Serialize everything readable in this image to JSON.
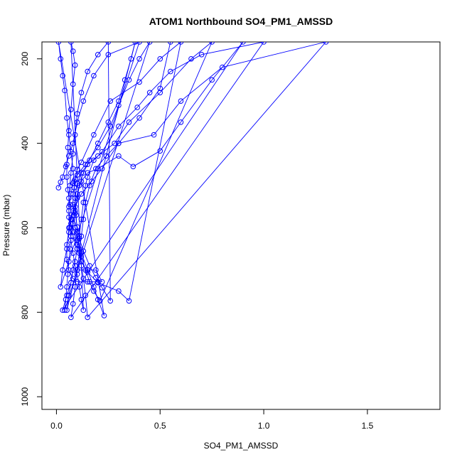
{
  "chart_data": {
    "type": "line",
    "title": "ATOM1 Northbound SO4_PM1_AMSSD",
    "xlabel": "SO4_PM1_AMSSD",
    "ylabel": "Pressure (mbar)",
    "xlim": [
      -0.07,
      1.85
    ],
    "ylim": [
      1030,
      160
    ],
    "y_reversed": true,
    "x_ticks": [
      0.0,
      0.5,
      1.0,
      1.5
    ],
    "x_tick_labels": [
      "0.0",
      "0.5",
      "1.0",
      "1.5"
    ],
    "y_ticks": [
      200,
      400,
      600,
      800,
      1000
    ],
    "y_tick_labels": [
      "200",
      "400",
      "600",
      "800",
      "1000"
    ],
    "grid": false,
    "legend": "none",
    "series_color": "#0000ff",
    "marker": "open-circle",
    "points": [
      [
        0.01,
        505
      ],
      [
        0.02,
        492
      ],
      [
        0.03,
        480
      ],
      [
        0.045,
        455
      ],
      [
        0.06,
        430
      ],
      [
        0.08,
        400
      ],
      [
        0.1,
        350
      ],
      [
        0.13,
        300
      ],
      [
        0.18,
        240
      ],
      [
        0.25,
        190
      ],
      [
        0.4,
        160
      ],
      [
        0.02,
        740
      ],
      [
        0.03,
        700
      ],
      [
        0.05,
        650
      ],
      [
        0.06,
        600
      ],
      [
        0.08,
        560
      ],
      [
        0.1,
        520
      ],
      [
        0.12,
        490
      ],
      [
        0.15,
        470
      ],
      [
        0.2,
        460
      ],
      [
        0.3,
        430
      ],
      [
        0.37,
        455
      ],
      [
        0.5,
        418
      ],
      [
        0.6,
        350
      ],
      [
        0.75,
        250
      ],
      [
        0.9,
        160
      ],
      [
        0.03,
        795
      ],
      [
        0.05,
        760
      ],
      [
        0.07,
        730
      ],
      [
        0.08,
        700
      ],
      [
        0.09,
        680
      ],
      [
        0.1,
        650
      ],
      [
        0.11,
        620
      ],
      [
        0.12,
        580
      ],
      [
        0.13,
        540
      ],
      [
        0.14,
        500
      ],
      [
        0.15,
        480
      ],
      [
        0.18,
        440
      ],
      [
        0.22,
        420
      ],
      [
        0.3,
        360
      ],
      [
        0.39,
        315
      ],
      [
        0.45,
        280
      ],
      [
        0.55,
        230
      ],
      [
        0.7,
        190
      ],
      [
        1.0,
        160
      ],
      [
        0.07,
        812
      ],
      [
        0.08,
        780
      ],
      [
        0.09,
        740
      ],
      [
        0.1,
        700
      ],
      [
        0.11,
        660
      ],
      [
        0.12,
        620
      ],
      [
        0.13,
        580
      ],
      [
        0.14,
        540
      ],
      [
        0.16,
        500
      ],
      [
        0.19,
        460
      ],
      [
        0.24,
        430
      ],
      [
        0.3,
        400
      ],
      [
        0.47,
        380
      ],
      [
        0.6,
        300
      ],
      [
        0.8,
        220
      ],
      [
        1.3,
        160
      ],
      [
        0.15,
        812
      ],
      [
        0.14,
        760
      ],
      [
        0.13,
        720
      ],
      [
        0.12,
        690
      ],
      [
        0.11,
        650
      ],
      [
        0.1,
        610
      ],
      [
        0.095,
        570
      ],
      [
        0.09,
        530
      ],
      [
        0.085,
        490
      ],
      [
        0.08,
        460
      ],
      [
        0.07,
        420
      ],
      [
        0.06,
        380
      ],
      [
        0.05,
        340
      ],
      [
        0.04,
        275
      ],
      [
        0.03,
        240
      ],
      [
        0.02,
        200
      ],
      [
        0.01,
        160
      ],
      [
        0.23,
        808
      ],
      [
        0.2,
        770
      ],
      [
        0.18,
        740
      ],
      [
        0.15,
        700
      ],
      [
        0.12,
        660
      ],
      [
        0.1,
        630
      ],
      [
        0.09,
        600
      ],
      [
        0.085,
        570
      ],
      [
        0.08,
        545
      ],
      [
        0.08,
        520
      ],
      [
        0.085,
        505
      ],
      [
        0.09,
        485
      ],
      [
        0.1,
        462
      ],
      [
        0.12,
        445
      ],
      [
        0.18,
        380
      ],
      [
        0.26,
        300
      ],
      [
        0.4,
        255
      ],
      [
        0.5,
        200
      ],
      [
        0.6,
        160
      ],
      [
        0.35,
        773
      ],
      [
        0.3,
        750
      ],
      [
        0.2,
        730
      ],
      [
        0.15,
        705
      ],
      [
        0.12,
        680
      ],
      [
        0.1,
        650
      ],
      [
        0.08,
        620
      ],
      [
        0.07,
        590
      ],
      [
        0.06,
        560
      ],
      [
        0.06,
        530
      ],
      [
        0.065,
        500
      ],
      [
        0.07,
        470
      ],
      [
        0.08,
        425
      ],
      [
        0.09,
        380
      ],
      [
        0.1,
        330
      ],
      [
        0.12,
        280
      ],
      [
        0.15,
        230
      ],
      [
        0.2,
        190
      ],
      [
        0.25,
        160
      ],
      [
        0.26,
        773
      ],
      [
        0.22,
        742
      ],
      [
        0.19,
        718
      ],
      [
        0.16,
        690
      ],
      [
        0.13,
        655
      ],
      [
        0.11,
        625
      ],
      [
        0.1,
        598
      ],
      [
        0.09,
        565
      ],
      [
        0.09,
        530
      ],
      [
        0.1,
        495
      ],
      [
        0.12,
        470
      ],
      [
        0.15,
        450
      ],
      [
        0.2,
        430
      ],
      [
        0.28,
        400
      ],
      [
        0.35,
        350
      ],
      [
        0.5,
        280
      ],
      [
        0.65,
        200
      ],
      [
        0.75,
        160
      ],
      [
        0.21,
        773
      ],
      [
        0.18,
        750
      ],
      [
        0.16,
        728
      ],
      [
        0.14,
        700
      ],
      [
        0.12,
        668
      ],
      [
        0.1,
        640
      ],
      [
        0.085,
        610
      ],
      [
        0.075,
        580
      ],
      [
        0.065,
        545
      ],
      [
        0.055,
        510
      ],
      [
        0.05,
        480
      ],
      [
        0.05,
        450
      ],
      [
        0.055,
        410
      ],
      [
        0.06,
        370
      ],
      [
        0.07,
        320
      ],
      [
        0.08,
        260
      ],
      [
        0.09,
        215
      ],
      [
        0.08,
        182
      ],
      [
        0.07,
        160
      ],
      [
        0.13,
        795
      ],
      [
        0.12,
        770
      ],
      [
        0.11,
        740
      ],
      [
        0.1,
        710
      ],
      [
        0.09,
        690
      ],
      [
        0.08,
        660
      ],
      [
        0.07,
        630
      ],
      [
        0.065,
        600
      ],
      [
        0.06,
        575
      ],
      [
        0.06,
        550
      ],
      [
        0.07,
        520
      ],
      [
        0.08,
        495
      ],
      [
        0.1,
        475
      ],
      [
        0.14,
        450
      ],
      [
        0.2,
        410
      ],
      [
        0.26,
        360
      ],
      [
        0.3,
        310
      ],
      [
        0.35,
        250
      ],
      [
        0.4,
        200
      ],
      [
        0.45,
        160
      ],
      [
        0.04,
        795
      ],
      [
        0.045,
        770
      ],
      [
        0.05,
        740
      ],
      [
        0.055,
        710
      ],
      [
        0.06,
        680
      ],
      [
        0.065,
        650
      ],
      [
        0.07,
        620
      ],
      [
        0.08,
        590
      ],
      [
        0.09,
        560
      ],
      [
        0.1,
        530
      ],
      [
        0.11,
        500
      ],
      [
        0.13,
        470
      ],
      [
        0.16,
        440
      ],
      [
        0.2,
        400
      ],
      [
        0.25,
        350
      ],
      [
        0.3,
        300
      ],
      [
        0.33,
        250
      ],
      [
        0.36,
        200
      ],
      [
        0.38,
        160
      ],
      [
        0.05,
        795
      ],
      [
        0.06,
        760
      ],
      [
        0.07,
        730
      ],
      [
        0.08,
        700
      ],
      [
        0.1,
        700
      ],
      [
        0.15,
        700
      ],
      [
        0.19,
        700
      ],
      [
        0.22,
        728
      ],
      [
        0.2,
        728
      ],
      [
        0.15,
        728
      ],
      [
        0.1,
        728
      ],
      [
        0.08,
        720
      ],
      [
        0.06,
        700
      ],
      [
        0.05,
        675
      ],
      [
        0.05,
        640
      ],
      [
        0.06,
        610
      ],
      [
        0.07,
        580
      ],
      [
        0.09,
        550
      ],
      [
        0.12,
        520
      ],
      [
        0.17,
        490
      ],
      [
        0.22,
        460
      ],
      [
        0.3,
        400
      ],
      [
        0.4,
        340
      ],
      [
        0.5,
        270
      ],
      [
        0.55,
        160
      ]
    ]
  }
}
